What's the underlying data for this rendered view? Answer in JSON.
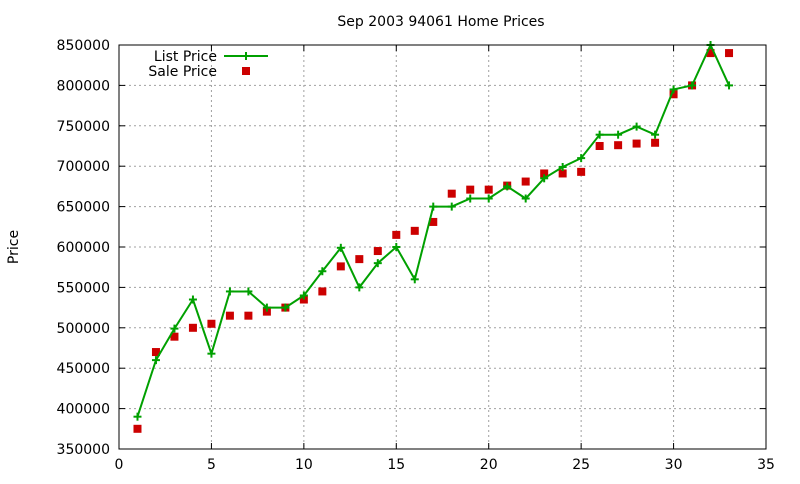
{
  "chart_data": {
    "type": "line",
    "title": "Sep 2003 94061 Home Prices",
    "xlabel": "",
    "ylabel": "Price",
    "xlim": [
      0,
      35
    ],
    "ylim": [
      350000,
      850000
    ],
    "xticks": [
      0,
      5,
      10,
      15,
      20,
      25,
      30,
      35
    ],
    "yticks": [
      350000,
      400000,
      450000,
      500000,
      550000,
      600000,
      650000,
      700000,
      750000,
      800000,
      850000
    ],
    "grid": true,
    "legend_position": "top-left",
    "series": [
      {
        "name": "List Price",
        "style": "line-with-plus-markers",
        "color": "#00a000",
        "x": [
          1,
          2,
          3,
          4,
          5,
          6,
          7,
          8,
          9,
          10,
          11,
          12,
          13,
          14,
          15,
          16,
          17,
          18,
          19,
          20,
          21,
          22,
          23,
          24,
          25,
          26,
          27,
          28,
          29,
          30,
          31,
          32,
          33
        ],
        "values": [
          390000,
          460000,
          499000,
          535000,
          468000,
          545000,
          545000,
          525000,
          525000,
          540000,
          570000,
          599000,
          550000,
          580000,
          600000,
          560000,
          650000,
          650000,
          660000,
          660000,
          675000,
          660000,
          685000,
          699000,
          710000,
          739000,
          739000,
          749000,
          739000,
          795000,
          800000,
          850000,
          800000
        ]
      },
      {
        "name": "Sale Price",
        "style": "square-markers",
        "color": "#cc0000",
        "x": [
          1,
          2,
          3,
          4,
          5,
          6,
          7,
          8,
          9,
          10,
          11,
          12,
          13,
          14,
          15,
          16,
          17,
          18,
          19,
          20,
          21,
          22,
          23,
          24,
          25,
          26,
          27,
          28,
          29,
          30,
          31,
          32,
          33
        ],
        "values": [
          375000,
          470000,
          489000,
          500000,
          505000,
          515000,
          515000,
          520000,
          525000,
          535000,
          545000,
          576000,
          585000,
          595000,
          615000,
          620000,
          631000,
          666000,
          671000,
          671000,
          676000,
          681000,
          691000,
          691000,
          693000,
          725000,
          726000,
          728000,
          729000,
          789000,
          800000,
          840000,
          840000
        ]
      }
    ]
  }
}
